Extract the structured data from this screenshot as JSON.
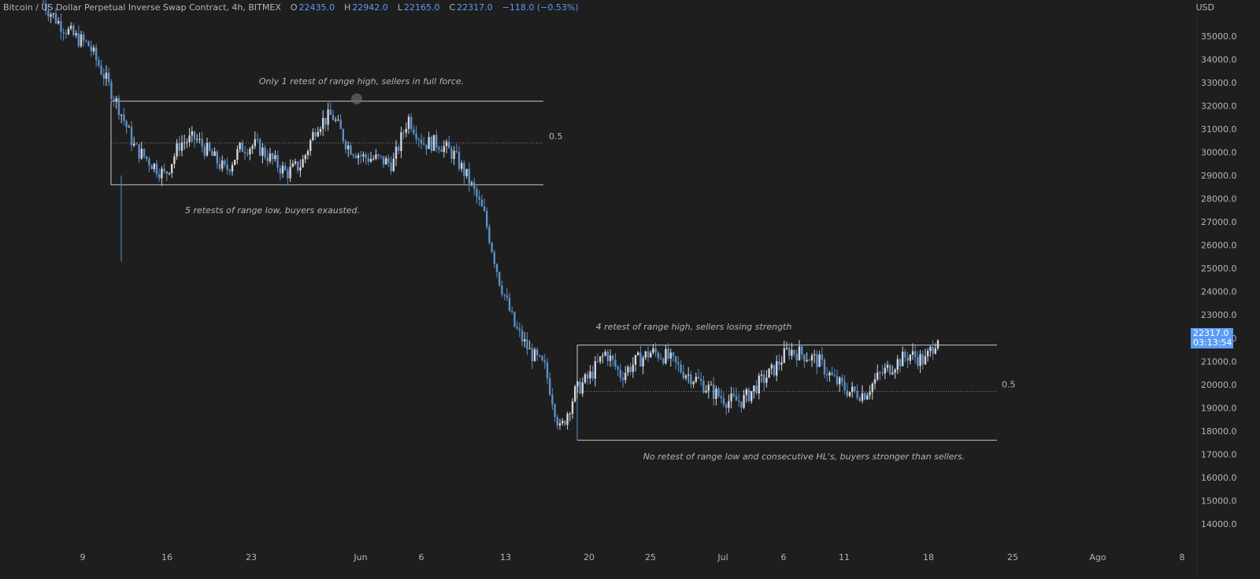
{
  "header": {
    "symbol": "Bitcoin / US Dollar Perpetual Inverse Swap Contract, 4h, BITMEX",
    "o_label": "O",
    "o_value": "22435.0",
    "h_label": "H",
    "h_value": "22942.0",
    "l_label": "L",
    "l_value": "22165.0",
    "c_label": "C",
    "c_value": "22317.0",
    "change": "−118.0 (−0.53%)"
  },
  "currency": "USD",
  "last_price": {
    "value": "22317.0",
    "countdown": "03:13:54"
  },
  "colors": {
    "background": "#1e1e1e",
    "up_candle": "#d1d4dc",
    "down_candle": "#5b8fc9",
    "line": "#c8c8c8",
    "text": "#b2b5be",
    "accent": "#5b9cf6"
  },
  "chart_data": {
    "type": "candlestick",
    "y_axis": {
      "ticks": [
        "35000.0",
        "34000.0",
        "33000.0",
        "32000.0",
        "31000.0",
        "30000.0",
        "29000.0",
        "28000.0",
        "27000.0",
        "26000.0",
        "25000.0",
        "24000.0",
        "23000.0",
        "22000.0",
        "21000.0",
        "20000.0",
        "19000.0",
        "18000.0",
        "17000.0",
        "16000.0",
        "15000.0",
        "14000.0"
      ],
      "ylim": [
        13400,
        36500
      ]
    },
    "x_axis": {
      "ticks": [
        "9",
        "16",
        "23",
        "Jun",
        "6",
        "13",
        "20",
        "25",
        "Jul",
        "6",
        "11",
        "18",
        "25",
        "Ago",
        "8"
      ]
    },
    "ranges": [
      {
        "name": "range-1",
        "high": 32200,
        "mid": 30400,
        "low": 28600,
        "mid_label": "0.5"
      },
      {
        "name": "range-2",
        "high": 21700,
        "mid": 19700,
        "low": 17600,
        "mid_label": "0.5"
      }
    ],
    "annotations": [
      "Only 1 retest of range high, sellers in full force.",
      "5 retests of range low, buyers exausted.",
      "4 retest of range high, sellers losing strength",
      "No retest of range low and consecutive HL's, buyers stronger than sellers."
    ],
    "price_path": [
      [
        "9",
        36400
      ],
      [
        "9",
        35600
      ],
      [
        "9",
        35000
      ],
      [
        "9",
        34600
      ],
      [
        "9",
        33300
      ],
      [
        "9",
        31900
      ],
      [
        "9",
        30200
      ],
      [
        "9",
        29600
      ],
      [
        "9",
        29000
      ],
      [
        "16",
        30400
      ],
      [
        "16",
        30600
      ],
      [
        "16",
        29900
      ],
      [
        "16",
        29200
      ],
      [
        "23",
        30200
      ],
      [
        "23",
        30300
      ],
      [
        "23",
        29700
      ],
      [
        "23",
        29100
      ],
      [
        "Jun",
        29500
      ],
      [
        "Jun",
        31200
      ],
      [
        "Jun",
        31600
      ],
      [
        "Jun",
        30300
      ],
      [
        "Jun",
        29800
      ],
      [
        "Jun",
        29700
      ],
      [
        "6",
        29500
      ],
      [
        "6",
        31500
      ],
      [
        "6",
        30400
      ],
      [
        "6",
        30400
      ],
      [
        "6",
        29900
      ],
      [
        "13",
        28800
      ],
      [
        "13",
        27300
      ],
      [
        "13",
        24500
      ],
      [
        "13",
        22500
      ],
      [
        "13",
        21400
      ],
      [
        "13",
        20700
      ],
      [
        "20",
        18000
      ],
      [
        "20",
        19700
      ],
      [
        "20",
        20400
      ],
      [
        "20",
        21400
      ],
      [
        "20",
        20400
      ],
      [
        "25",
        21000
      ],
      [
        "25",
        21400
      ],
      [
        "25",
        21200
      ],
      [
        "25",
        20600
      ],
      [
        "25",
        20200
      ],
      [
        "Jul",
        19700
      ],
      [
        "Jul",
        19300
      ],
      [
        "Jul",
        19300
      ],
      [
        "6",
        20000
      ],
      [
        "6",
        20600
      ],
      [
        "6",
        21500
      ],
      [
        "6",
        21300
      ],
      [
        "11",
        21000
      ],
      [
        "11",
        20200
      ],
      [
        "11",
        19700
      ],
      [
        "11",
        19600
      ],
      [
        "11",
        20400
      ],
      [
        "18",
        20900
      ],
      [
        "18",
        21300
      ],
      [
        "18",
        21000
      ],
      [
        "18",
        22300
      ]
    ]
  }
}
